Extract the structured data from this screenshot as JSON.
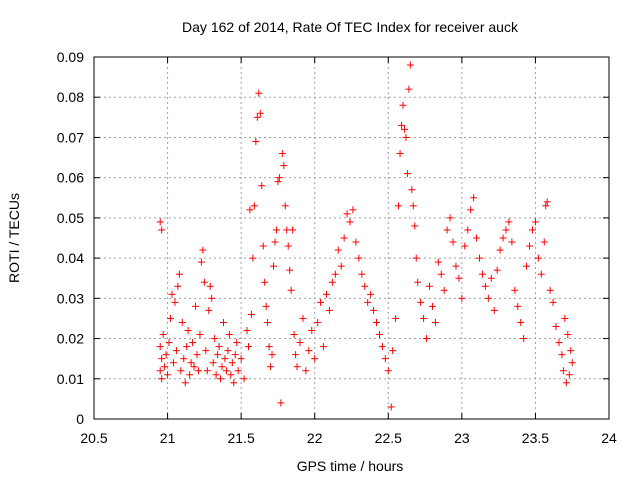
{
  "chart_data": {
    "type": "scatter",
    "title": "Day 162 of 2014, Rate Of TEC Index for receiver auck",
    "xlabel": "GPS time / hours",
    "ylabel": "ROTI / TECUs",
    "xlim": [
      20.5,
      24
    ],
    "ylim": [
      0,
      0.09
    ],
    "xticks": [
      20.5,
      21,
      21.5,
      22,
      22.5,
      23,
      23.5,
      24
    ],
    "xtick_labels": [
      "20.5",
      "21",
      "21.5",
      "22",
      "22.5",
      "23",
      "23.5",
      "24"
    ],
    "yticks": [
      0,
      0.01,
      0.02,
      0.03,
      0.04,
      0.05,
      0.06,
      0.07,
      0.08,
      0.09
    ],
    "ytick_labels": [
      "0",
      "0.01",
      "0.02",
      "0.03",
      "0.04",
      "0.05",
      "0.06",
      "0.07",
      "0.08",
      "0.09"
    ],
    "grid": true,
    "marker": "+",
    "color": "#ff0000",
    "series": [
      {
        "name": "ROTI",
        "points": [
          [
            20.95,
            0.049
          ],
          [
            20.96,
            0.047
          ],
          [
            20.95,
            0.018
          ],
          [
            20.96,
            0.015
          ],
          [
            20.95,
            0.012
          ],
          [
            20.96,
            0.01
          ],
          [
            20.97,
            0.021
          ],
          [
            20.98,
            0.013
          ],
          [
            20.99,
            0.016
          ],
          [
            21.0,
            0.011
          ],
          [
            21.01,
            0.019
          ],
          [
            21.02,
            0.025
          ],
          [
            21.03,
            0.031
          ],
          [
            21.04,
            0.014
          ],
          [
            21.05,
            0.029
          ],
          [
            21.06,
            0.017
          ],
          [
            21.07,
            0.033
          ],
          [
            21.08,
            0.036
          ],
          [
            21.09,
            0.012
          ],
          [
            21.1,
            0.024
          ],
          [
            21.11,
            0.015
          ],
          [
            21.12,
            0.009
          ],
          [
            21.13,
            0.018
          ],
          [
            21.14,
            0.022
          ],
          [
            21.15,
            0.011
          ],
          [
            21.16,
            0.014
          ],
          [
            21.17,
            0.019
          ],
          [
            21.18,
            0.013
          ],
          [
            21.19,
            0.028
          ],
          [
            21.2,
            0.016
          ],
          [
            21.21,
            0.012
          ],
          [
            21.22,
            0.021
          ],
          [
            21.23,
            0.039
          ],
          [
            21.24,
            0.042
          ],
          [
            21.25,
            0.034
          ],
          [
            21.26,
            0.017
          ],
          [
            21.27,
            0.012
          ],
          [
            21.28,
            0.027
          ],
          [
            21.29,
            0.033
          ],
          [
            21.3,
            0.03
          ],
          [
            21.31,
            0.014
          ],
          [
            21.32,
            0.02
          ],
          [
            21.33,
            0.011
          ],
          [
            21.34,
            0.016
          ],
          [
            21.35,
            0.018
          ],
          [
            21.36,
            0.01
          ],
          [
            21.37,
            0.013
          ],
          [
            21.38,
            0.024
          ],
          [
            21.39,
            0.015
          ],
          [
            21.4,
            0.012
          ],
          [
            21.41,
            0.017
          ],
          [
            21.42,
            0.021
          ],
          [
            21.43,
            0.011
          ],
          [
            21.44,
            0.014
          ],
          [
            21.45,
            0.009
          ],
          [
            21.46,
            0.016
          ],
          [
            21.47,
            0.019
          ],
          [
            21.48,
            0.012
          ],
          [
            21.5,
            0.015
          ],
          [
            21.52,
            0.01
          ],
          [
            21.54,
            0.022
          ],
          [
            21.55,
            0.018
          ],
          [
            21.56,
            0.052
          ],
          [
            21.57,
            0.026
          ],
          [
            21.58,
            0.04
          ],
          [
            21.59,
            0.053
          ],
          [
            21.6,
            0.069
          ],
          [
            21.61,
            0.075
          ],
          [
            21.62,
            0.081
          ],
          [
            21.63,
            0.076
          ],
          [
            21.64,
            0.058
          ],
          [
            21.65,
            0.043
          ],
          [
            21.66,
            0.034
          ],
          [
            21.67,
            0.028
          ],
          [
            21.68,
            0.024
          ],
          [
            21.69,
            0.018
          ],
          [
            21.7,
            0.013
          ],
          [
            21.71,
            0.016
          ],
          [
            21.72,
            0.038
          ],
          [
            21.73,
            0.044
          ],
          [
            21.74,
            0.047
          ],
          [
            21.75,
            0.059
          ],
          [
            21.76,
            0.06
          ],
          [
            21.77,
            0.004
          ],
          [
            21.78,
            0.066
          ],
          [
            21.79,
            0.063
          ],
          [
            21.8,
            0.053
          ],
          [
            21.81,
            0.047
          ],
          [
            21.82,
            0.043
          ],
          [
            21.83,
            0.037
          ],
          [
            21.84,
            0.032
          ],
          [
            21.85,
            0.047
          ],
          [
            21.86,
            0.021
          ],
          [
            21.87,
            0.016
          ],
          [
            21.88,
            0.013
          ],
          [
            21.9,
            0.019
          ],
          [
            21.92,
            0.025
          ],
          [
            21.94,
            0.012
          ],
          [
            21.96,
            0.017
          ],
          [
            21.98,
            0.022
          ],
          [
            22.0,
            0.015
          ],
          [
            22.02,
            0.024
          ],
          [
            22.04,
            0.029
          ],
          [
            22.06,
            0.018
          ],
          [
            22.08,
            0.031
          ],
          [
            22.1,
            0.027
          ],
          [
            22.12,
            0.034
          ],
          [
            22.14,
            0.036
          ],
          [
            22.16,
            0.042
          ],
          [
            22.18,
            0.038
          ],
          [
            22.2,
            0.045
          ],
          [
            22.22,
            0.051
          ],
          [
            22.24,
            0.049
          ],
          [
            22.26,
            0.052
          ],
          [
            22.28,
            0.044
          ],
          [
            22.3,
            0.04
          ],
          [
            22.32,
            0.036
          ],
          [
            22.34,
            0.033
          ],
          [
            22.36,
            0.029
          ],
          [
            22.38,
            0.031
          ],
          [
            22.4,
            0.027
          ],
          [
            22.42,
            0.024
          ],
          [
            22.44,
            0.021
          ],
          [
            22.46,
            0.018
          ],
          [
            22.48,
            0.015
          ],
          [
            22.5,
            0.012
          ],
          [
            22.52,
            0.003
          ],
          [
            22.53,
            0.017
          ],
          [
            22.55,
            0.025
          ],
          [
            22.57,
            0.053
          ],
          [
            22.58,
            0.066
          ],
          [
            22.59,
            0.073
          ],
          [
            22.6,
            0.078
          ],
          [
            22.61,
            0.072
          ],
          [
            22.62,
            0.07
          ],
          [
            22.63,
            0.061
          ],
          [
            22.64,
            0.082
          ],
          [
            22.65,
            0.088
          ],
          [
            22.66,
            0.057
          ],
          [
            22.67,
            0.053
          ],
          [
            22.68,
            0.048
          ],
          [
            22.69,
            0.04
          ],
          [
            22.7,
            0.034
          ],
          [
            22.72,
            0.029
          ],
          [
            22.74,
            0.025
          ],
          [
            22.76,
            0.02
          ],
          [
            22.78,
            0.033
          ],
          [
            22.8,
            0.028
          ],
          [
            22.82,
            0.024
          ],
          [
            22.84,
            0.039
          ],
          [
            22.86,
            0.036
          ],
          [
            22.88,
            0.032
          ],
          [
            22.9,
            0.047
          ],
          [
            22.92,
            0.05
          ],
          [
            22.94,
            0.044
          ],
          [
            22.96,
            0.038
          ],
          [
            22.98,
            0.035
          ],
          [
            23.0,
            0.03
          ],
          [
            23.02,
            0.043
          ],
          [
            23.04,
            0.047
          ],
          [
            23.06,
            0.052
          ],
          [
            23.08,
            0.055
          ],
          [
            23.1,
            0.045
          ],
          [
            23.12,
            0.04
          ],
          [
            23.14,
            0.036
          ],
          [
            23.16,
            0.033
          ],
          [
            23.18,
            0.03
          ],
          [
            23.2,
            0.035
          ],
          [
            23.22,
            0.027
          ],
          [
            23.24,
            0.037
          ],
          [
            23.26,
            0.042
          ],
          [
            23.28,
            0.045
          ],
          [
            23.3,
            0.047
          ],
          [
            23.32,
            0.049
          ],
          [
            23.34,
            0.044
          ],
          [
            23.36,
            0.032
          ],
          [
            23.38,
            0.028
          ],
          [
            23.4,
            0.024
          ],
          [
            23.42,
            0.02
          ],
          [
            23.44,
            0.038
          ],
          [
            23.46,
            0.043
          ],
          [
            23.48,
            0.047
          ],
          [
            23.5,
            0.049
          ],
          [
            23.52,
            0.04
          ],
          [
            23.54,
            0.036
          ],
          [
            23.56,
            0.044
          ],
          [
            23.57,
            0.053
          ],
          [
            23.58,
            0.054
          ],
          [
            23.6,
            0.032
          ],
          [
            23.62,
            0.029
          ],
          [
            23.64,
            0.023
          ],
          [
            23.66,
            0.019
          ],
          [
            23.68,
            0.016
          ],
          [
            23.7,
            0.025
          ],
          [
            23.72,
            0.021
          ],
          [
            23.74,
            0.017
          ],
          [
            23.75,
            0.014
          ],
          [
            23.73,
            0.011
          ],
          [
            23.71,
            0.009
          ],
          [
            23.69,
            0.012
          ]
        ]
      }
    ]
  }
}
